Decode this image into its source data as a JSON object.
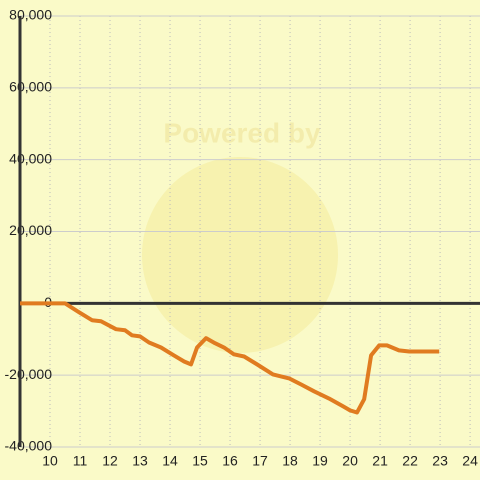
{
  "chart_data": {
    "type": "line",
    "watermark": "Powered by",
    "x": [
      9,
      10.5,
      10.97,
      11.4,
      11.7,
      12.2,
      12.5,
      12.73,
      13.0,
      13.3,
      13.7,
      14.13,
      14.47,
      14.7,
      14.9,
      15.2,
      15.5,
      15.8,
      16.13,
      16.47,
      16.9,
      17.43,
      17.97,
      18.37,
      18.8,
      19.3,
      19.77,
      20.0,
      20.23,
      20.47,
      20.7,
      20.97,
      21.23,
      21.63,
      21.97,
      22.97
    ],
    "series": [
      {
        "color": "#e07b20",
        "values": [
          0,
          0,
          -2500,
          -4700,
          -5000,
          -7200,
          -7500,
          -8900,
          -9200,
          -10900,
          -12300,
          -14500,
          -16200,
          -17000,
          -12300,
          -9700,
          -11100,
          -12300,
          -14200,
          -14800,
          -17000,
          -19800,
          -20900,
          -22600,
          -24500,
          -26500,
          -28700,
          -29800,
          -30400,
          -26700,
          -14500,
          -11700,
          -11700,
          -13100,
          -13400,
          -13400
        ]
      }
    ],
    "xlim": [
      9,
      24.33
    ],
    "ylim": [
      -40000,
      80000
    ],
    "xticks": [
      10,
      11,
      12,
      13,
      14,
      15,
      16,
      17,
      18,
      19,
      20,
      21,
      22,
      23,
      24
    ],
    "yticks": [
      {
        "value": -40000,
        "label": "-40,000"
      },
      {
        "value": -20000,
        "label": "-20,000"
      },
      0,
      {
        "value": 20000,
        "label": "20,000"
      },
      {
        "value": 40000,
        "label": "40,000"
      },
      {
        "value": 60000,
        "label": "60,000"
      },
      {
        "value": 80000,
        "label": "80,000"
      }
    ],
    "grid": true
  }
}
